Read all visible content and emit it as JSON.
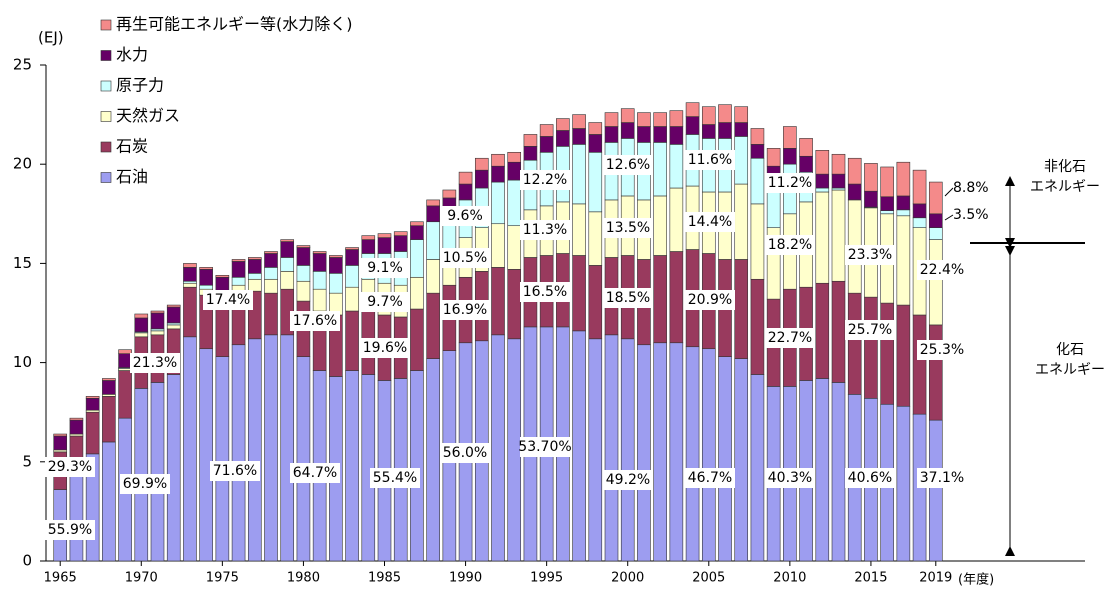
{
  "chart_data": {
    "type": "stacked_bar",
    "y_unit": "(EJ)",
    "x_unit": "(年度)",
    "x": [
      1965,
      1966,
      1967,
      1968,
      1969,
      1970,
      1971,
      1972,
      1973,
      1974,
      1975,
      1976,
      1977,
      1978,
      1979,
      1980,
      1981,
      1982,
      1983,
      1984,
      1985,
      1986,
      1987,
      1988,
      1989,
      1990,
      1991,
      1992,
      1993,
      1994,
      1995,
      1996,
      1997,
      1998,
      1999,
      2000,
      2001,
      2002,
      2003,
      2004,
      2005,
      2006,
      2007,
      2008,
      2009,
      2010,
      2011,
      2012,
      2013,
      2014,
      2015,
      2016,
      2017,
      2018,
      2019
    ],
    "xlim": [
      1964,
      2020
    ],
    "xticks": [
      1965,
      1970,
      1975,
      1980,
      1985,
      1990,
      1995,
      2000,
      2005,
      2010,
      2015,
      2019
    ],
    "ylim": [
      0,
      25
    ],
    "yticks": [
      0,
      5,
      10,
      15,
      20,
      25
    ],
    "legend": "top-left",
    "series": [
      {
        "name": "石油",
        "color": "#9d9df0",
        "values": [
          3.6,
          4.4,
          5.4,
          6.0,
          7.2,
          8.7,
          9.0,
          9.4,
          11.3,
          10.7,
          10.3,
          10.9,
          11.2,
          11.4,
          11.4,
          10.3,
          9.6,
          9.3,
          9.6,
          9.4,
          9.1,
          9.2,
          9.6,
          10.2,
          10.6,
          11.0,
          11.1,
          11.4,
          11.2,
          11.8,
          11.8,
          11.8,
          11.6,
          11.2,
          11.4,
          11.2,
          10.9,
          11.0,
          11.0,
          10.8,
          10.7,
          10.3,
          10.2,
          9.4,
          8.8,
          8.8,
          9.1,
          9.2,
          9.0,
          8.4,
          8.2,
          7.9,
          7.8,
          7.4,
          7.1
        ]
      },
      {
        "name": "石炭",
        "color": "#993a5e",
        "values": [
          1.9,
          1.9,
          2.1,
          2.3,
          2.4,
          2.6,
          2.4,
          2.3,
          2.5,
          2.7,
          2.5,
          2.5,
          2.4,
          2.1,
          2.3,
          2.8,
          3.0,
          3.1,
          3.0,
          3.3,
          3.3,
          3.1,
          3.1,
          3.3,
          3.3,
          3.3,
          3.5,
          3.4,
          3.5,
          3.5,
          3.6,
          3.7,
          3.8,
          3.7,
          3.9,
          4.2,
          4.3,
          4.4,
          4.6,
          4.9,
          4.8,
          4.9,
          5.0,
          4.8,
          4.4,
          4.9,
          4.7,
          4.8,
          5.1,
          5.1,
          5.1,
          5.1,
          5.1,
          5.0,
          4.8
        ]
      },
      {
        "name": "天然ガス",
        "color": "#ffffcc",
        "values": [
          0.1,
          0.1,
          0.1,
          0.1,
          0.1,
          0.2,
          0.2,
          0.2,
          0.2,
          0.3,
          0.4,
          0.5,
          0.6,
          0.7,
          0.9,
          1.0,
          1.1,
          1.1,
          1.2,
          1.5,
          1.6,
          1.6,
          1.6,
          1.7,
          1.8,
          2.0,
          2.2,
          2.2,
          2.2,
          2.4,
          2.5,
          2.6,
          2.6,
          2.7,
          2.9,
          3.0,
          3.0,
          3.0,
          3.2,
          3.2,
          3.1,
          3.4,
          3.8,
          3.8,
          3.6,
          3.8,
          4.3,
          4.6,
          4.6,
          4.7,
          4.5,
          4.5,
          4.5,
          4.4,
          4.3
        ]
      },
      {
        "name": "原子力",
        "color": "#ccffff",
        "values": [
          0,
          0,
          0,
          0,
          0.05,
          0.05,
          0.1,
          0.1,
          0.1,
          0.2,
          0.3,
          0.4,
          0.3,
          0.6,
          0.7,
          0.8,
          0.9,
          1.0,
          1.1,
          1.3,
          1.5,
          1.7,
          1.9,
          1.9,
          1.8,
          1.9,
          2.0,
          2.1,
          2.3,
          2.5,
          2.7,
          2.8,
          3.0,
          3.0,
          2.9,
          2.9,
          2.9,
          2.7,
          2.2,
          2.6,
          2.7,
          2.7,
          2.4,
          2.3,
          2.4,
          2.5,
          1.5,
          0.2,
          0.1,
          0,
          0.04,
          0.16,
          0.3,
          0.5,
          0.6
        ]
      },
      {
        "name": "水力",
        "color": "#660066",
        "values": [
          0.7,
          0.7,
          0.6,
          0.7,
          0.7,
          0.7,
          0.8,
          0.8,
          0.7,
          0.8,
          0.8,
          0.8,
          0.7,
          0.7,
          0.8,
          0.9,
          0.9,
          0.8,
          0.8,
          0.7,
          0.8,
          0.8,
          0.7,
          0.8,
          0.8,
          0.8,
          0.9,
          0.8,
          0.9,
          0.7,
          0.8,
          0.8,
          0.8,
          0.9,
          0.8,
          0.8,
          0.8,
          0.8,
          0.9,
          0.9,
          0.7,
          0.8,
          0.7,
          0.7,
          0.7,
          0.8,
          0.8,
          0.7,
          0.7,
          0.8,
          0.8,
          0.7,
          0.7,
          0.7,
          0.7
        ]
      },
      {
        "name": "再生可能エネルギー等(水力除く)",
        "color": "#f48a8a",
        "values": [
          0.1,
          0.1,
          0.1,
          0.1,
          0.2,
          0.2,
          0.1,
          0.1,
          0.2,
          0.1,
          0.1,
          0.1,
          0.1,
          0.1,
          0.1,
          0.1,
          0.1,
          0.1,
          0.1,
          0.2,
          0.2,
          0.2,
          0.2,
          0.3,
          0.4,
          0.6,
          0.6,
          0.6,
          0.5,
          0.6,
          0.6,
          0.6,
          0.7,
          0.6,
          0.7,
          0.7,
          0.7,
          0.7,
          0.8,
          0.7,
          0.9,
          0.9,
          0.8,
          0.8,
          0.9,
          1.1,
          0.9,
          1.2,
          1.0,
          1.3,
          1.4,
          1.5,
          1.7,
          1.7,
          1.6
        ]
      }
    ],
    "annotations": [
      "55.9%",
      "69.9%",
      "71.6%",
      "64.7%",
      "55.4%",
      "56.0%",
      "53.70%",
      "49.2%",
      "46.7%",
      "40.3%",
      "40.6%",
      "37.1%",
      "29.3%",
      "21.3%",
      "17.4%",
      "17.6%",
      "19.6%",
      "16.9%",
      "16.5%",
      "18.5%",
      "20.9%",
      "22.7%",
      "25.7%",
      "25.3%",
      "9.7%",
      "10.5%",
      "11.3%",
      "13.5%",
      "14.4%",
      "18.2%",
      "23.3%",
      "22.4%",
      "9.1%",
      "9.6%",
      "12.2%",
      "12.6%",
      "11.6%",
      "11.2%",
      "3.5%",
      "8.8%"
    ],
    "side_labels": [
      [
        "非化石",
        "エネルギー"
      ],
      [
        "化石",
        "エネルギー"
      ]
    ]
  }
}
